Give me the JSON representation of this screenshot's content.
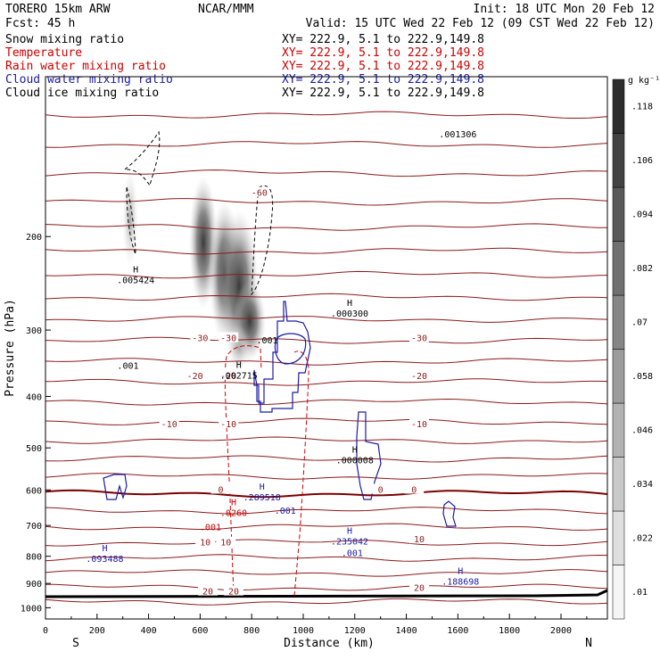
{
  "header": {
    "model": "TORERO  15km ARW",
    "org": "NCAR/MMM",
    "init": "Init: 18 UTC Mon 20 Feb 12",
    "fcst": "Fcst:   45 h",
    "valid": "Valid: 15 UTC Wed 22 Feb 12 (09 CST Wed 22 Feb 12)"
  },
  "fields": [
    {
      "name": "Snow mixing ratio",
      "xy": "XY= 222.9,  5.1 to 222.9,149.8",
      "color": "#000000"
    },
    {
      "name": "Temperature",
      "xy": "XY= 222.9,  5.1 to 222.9,149.8",
      "color": "#cc0000"
    },
    {
      "name": "Rain water mixing ratio",
      "xy": "XY= 222.9,  5.1 to 222.9,149.8",
      "color": "#cc0000"
    },
    {
      "name": "Cloud water mixing ratio",
      "xy": "XY= 222.9,  5.1 to 222.9,149.8",
      "color": "#1a1aa8"
    },
    {
      "name": "Cloud ice mixing ratio",
      "xy": "XY= 222.9,  5.1 to 222.9,149.8",
      "color": "#000000"
    }
  ],
  "colorbar": {
    "unit": "g kg⁻¹",
    "labels": [
      ".01",
      ".022",
      ".034",
      ".046",
      ".058",
      ".07",
      ".082",
      ".094",
      ".106",
      ".118"
    ]
  },
  "chart_data": {
    "type": "cross-section",
    "xlabel": "Distance (km)",
    "ylabel": "Pressure (hPa)",
    "xlim": [
      0,
      2180
    ],
    "ylim": [
      1050,
      100
    ],
    "y_scale": "log",
    "x_ticks": [
      0,
      200,
      400,
      600,
      800,
      1000,
      1200,
      1400,
      1600,
      1800,
      2000
    ],
    "y_ticks": [
      200,
      300,
      400,
      500,
      600,
      700,
      800,
      900,
      1000
    ],
    "x_end_labels": {
      "left": "S",
      "right": "N"
    },
    "temperature_labels": [
      {
        "text": "-60",
        "x": 830,
        "p": 165
      },
      {
        "text": "-30",
        "x": 600,
        "p": 310
      },
      {
        "text": "-30",
        "x": 710,
        "p": 310
      },
      {
        "text": "-30",
        "x": 1450,
        "p": 310
      },
      {
        "text": "-20",
        "x": 580,
        "p": 365
      },
      {
        "text": "-20",
        "x": 710,
        "p": 365
      },
      {
        "text": "-20",
        "x": 1450,
        "p": 365
      },
      {
        "text": "-10",
        "x": 480,
        "p": 450
      },
      {
        "text": "-10",
        "x": 710,
        "p": 450
      },
      {
        "text": "-10",
        "x": 1450,
        "p": 450
      },
      {
        "text": "0",
        "x": 680,
        "p": 598
      },
      {
        "text": "0",
        "x": 1300,
        "p": 598
      },
      {
        "text": "0",
        "x": 1430,
        "p": 598
      },
      {
        "text": "10",
        "x": 620,
        "p": 752
      },
      {
        "text": "10",
        "x": 700,
        "p": 752
      },
      {
        "text": "10",
        "x": 1450,
        "p": 742
      },
      {
        "text": "20",
        "x": 630,
        "p": 930
      },
      {
        "text": "20",
        "x": 730,
        "p": 930
      },
      {
        "text": "20",
        "x": 1450,
        "p": 915
      }
    ],
    "extrema": [
      {
        "letter": "H",
        "value": ".005424",
        "x": 350,
        "p": 245,
        "color": "#000000"
      },
      {
        "letter": "",
        "value": ".001",
        "x": 320,
        "p": 355,
        "color": "#000000"
      },
      {
        "letter": "H",
        "value": ".002715",
        "x": 750,
        "p": 370,
        "color": "#000000"
      },
      {
        "letter": "",
        "value": ".001",
        "x": 860,
        "p": 318,
        "color": "#000000"
      },
      {
        "letter": "H",
        "value": ".000300",
        "x": 1180,
        "p": 283,
        "color": "#000000"
      },
      {
        "letter": "",
        "value": ".001306",
        "x": 1600,
        "p": 130,
        "color": "#000000"
      },
      {
        "letter": "H",
        "value": ".000008",
        "x": 1200,
        "p": 535,
        "color": "#000000"
      },
      {
        "letter": "H",
        "value": ".289518",
        "x": 840,
        "p": 628,
        "color": "#1a1aa8"
      },
      {
        "letter": "",
        "value": ".001",
        "x": 930,
        "p": 665,
        "color": "#1a1aa8"
      },
      {
        "letter": "H",
        "value": ".0260",
        "x": 730,
        "p": 672,
        "color": "#cc0000"
      },
      {
        "letter": "",
        "value": ".001",
        "x": 640,
        "p": 715,
        "color": "#cc0000"
      },
      {
        "letter": "H",
        "value": ".235042",
        "x": 1180,
        "p": 760,
        "color": "#1a1aa8"
      },
      {
        "letter": "",
        "value": ".001",
        "x": 1190,
        "p": 800,
        "color": "#1a1aa8"
      },
      {
        "letter": "H",
        "value": ".093488",
        "x": 230,
        "p": 820,
        "color": "#1a1aa8"
      },
      {
        "letter": "H",
        "value": ".188698",
        "x": 1610,
        "p": 905,
        "color": "#1a1aa8"
      }
    ]
  }
}
